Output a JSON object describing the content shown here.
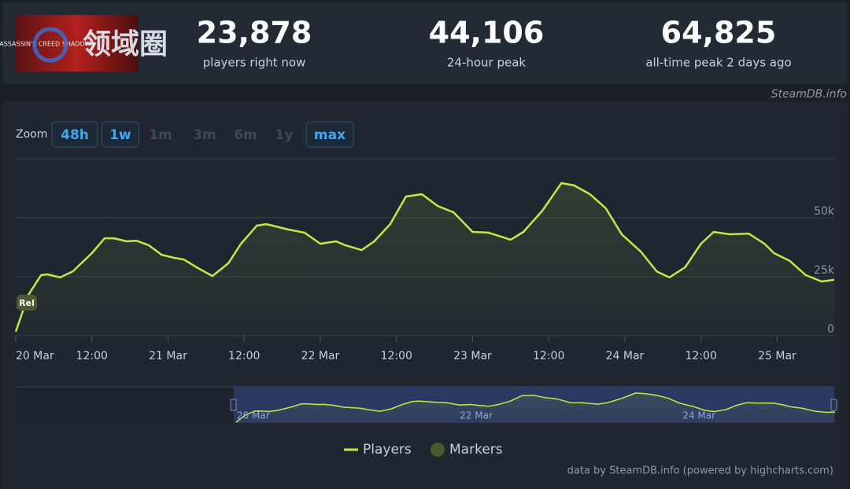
{
  "header": {
    "thumbnail_title": "ASSASSIN'S CREED SHADOWS",
    "watermark": "领域圈",
    "stats": [
      {
        "value": "23,878",
        "label": "players right now"
      },
      {
        "value": "44,106",
        "label": "24-hour peak"
      },
      {
        "value": "64,825",
        "label": "all-time peak 2 days ago"
      }
    ]
  },
  "source": "SteamDB.info",
  "zoom": {
    "label": "Zoom",
    "buttons": [
      {
        "text": "48h",
        "enabled": true
      },
      {
        "text": "1w",
        "enabled": true
      },
      {
        "text": "1m",
        "enabled": false
      },
      {
        "text": "3m",
        "enabled": false
      },
      {
        "text": "6m",
        "enabled": false
      },
      {
        "text": "1y",
        "enabled": false
      },
      {
        "text": "max",
        "enabled": true
      }
    ]
  },
  "chart_data": {
    "type": "line",
    "x": [
      0,
      2,
      4,
      5,
      7,
      9,
      12,
      14,
      15.5,
      17.5,
      19,
      21,
      23,
      25,
      26.5,
      28.5,
      31,
      33.5,
      35.5,
      38,
      39.5,
      43,
      45.5,
      48,
      50.5,
      52,
      54.5,
      56.5,
      59,
      61.5,
      64,
      66.5,
      69,
      72,
      74.5,
      78,
      80,
      83,
      86,
      88,
      90.5,
      93,
      95.5,
      98.5,
      101,
      103,
      105.5,
      108,
      110,
      112.5,
      115.5,
      118,
      119.5,
      122,
      124.5,
      127,
      129
    ],
    "series": [
      {
        "name": "Players",
        "color": "#c3e947",
        "values": [
          1700,
          17300,
          25700,
          26000,
          24700,
          27300,
          35000,
          41300,
          41300,
          40000,
          40300,
          38300,
          34300,
          33000,
          32300,
          29000,
          25300,
          30700,
          39000,
          46700,
          47300,
          45000,
          43700,
          39000,
          40000,
          38300,
          36300,
          40000,
          47300,
          59000,
          60000,
          55000,
          52300,
          44000,
          43700,
          40700,
          44000,
          53000,
          64700,
          63700,
          60000,
          54000,
          43000,
          35700,
          27300,
          24700,
          29000,
          39000,
          44000,
          43000,
          43300,
          39000,
          35000,
          31700,
          25700,
          23000,
          23700
        ]
      }
    ],
    "xlim": [
      0,
      129
    ],
    "xticks": [
      {
        "value": 0,
        "label": "20 Mar"
      },
      {
        "value": 12,
        "label": "12:00"
      },
      {
        "value": 24,
        "label": "21 Mar"
      },
      {
        "value": 36,
        "label": "12:00"
      },
      {
        "value": 48,
        "label": "22 Mar"
      },
      {
        "value": 60,
        "label": "12:00"
      },
      {
        "value": 72,
        "label": "23 Mar"
      },
      {
        "value": 84,
        "label": "12:00"
      },
      {
        "value": 96,
        "label": "24 Mar"
      },
      {
        "value": 108,
        "label": "12:00"
      },
      {
        "value": 120,
        "label": "25 Mar"
      }
    ],
    "ylim": [
      0,
      75000
    ],
    "yticks": [
      0,
      {
        "value": 25000,
        "label": "25k"
      },
      {
        "value": 50000,
        "label": "50k"
      }
    ],
    "grid": true,
    "markers": {
      "name": "Markers",
      "color": "#4a5a31",
      "items": [
        {
          "x": 0,
          "label": "Rel"
        }
      ]
    },
    "navigator": {
      "labels": [
        {
          "value": 0,
          "label": "20 Mar"
        },
        {
          "value": 48,
          "label": "22 Mar"
        },
        {
          "value": 96,
          "label": "24 Mar"
        }
      ]
    }
  },
  "credit": "data by SteamDB.info (powered by highcharts.com)"
}
